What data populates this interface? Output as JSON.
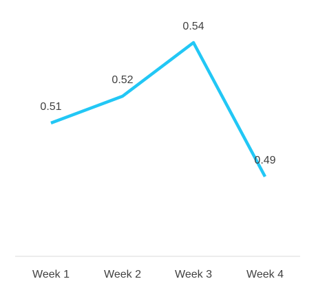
{
  "chart_data": {
    "type": "line",
    "categories": [
      "Week 1",
      "Week 2",
      "Week 3",
      "Week 4"
    ],
    "series": [
      {
        "values": [
          0.51,
          0.52,
          0.54,
          0.49
        ],
        "labels": [
          "0.51",
          "0.52",
          "0.54",
          "0.49"
        ],
        "color": "#22C7F5"
      }
    ],
    "title": "",
    "xlabel": "",
    "ylabel": "",
    "grid": false,
    "legend": "none"
  },
  "colors": {
    "line": "#22C7F5",
    "axis": "#D9D9D9",
    "text": "#404040"
  }
}
